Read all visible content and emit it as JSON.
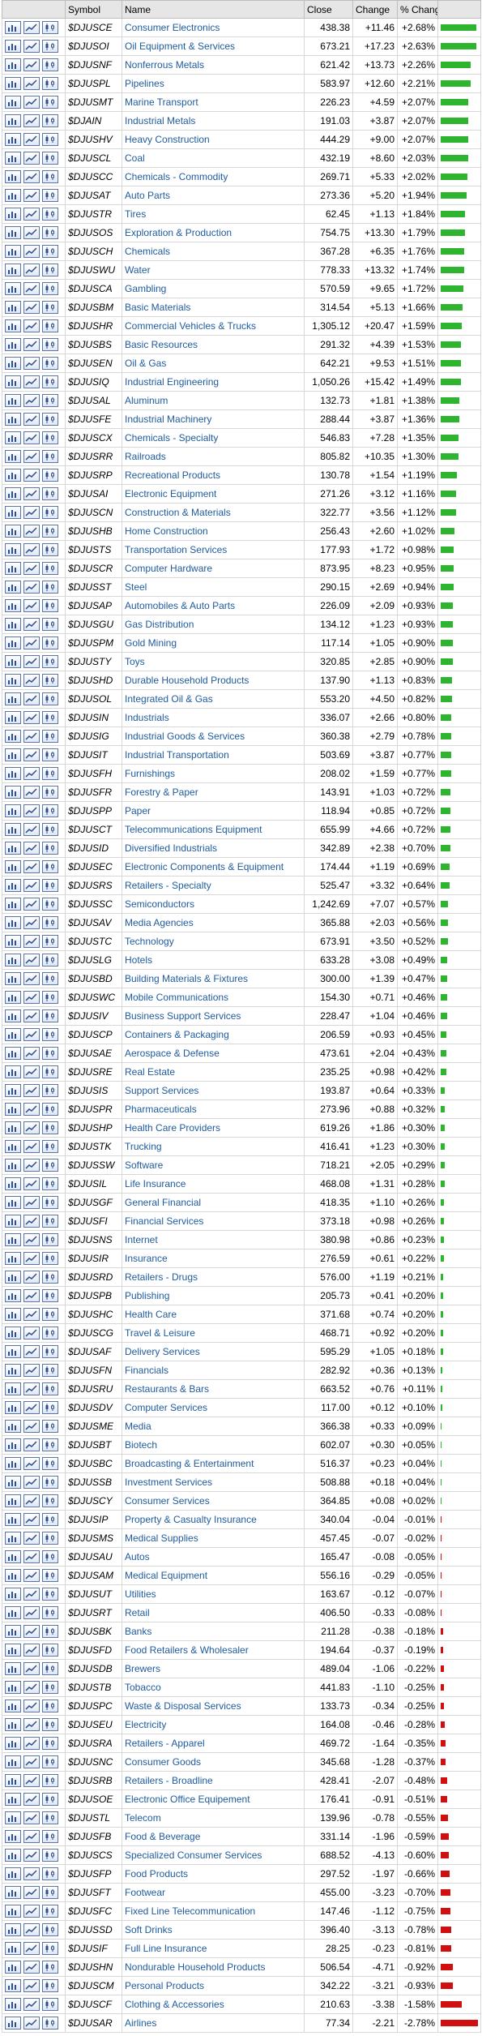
{
  "headers": {
    "icons": "",
    "symbol": "Symbol",
    "name": "Name",
    "close": "Close",
    "change": "Change",
    "pct_change": "% Change",
    "bar": ""
  },
  "colors": {
    "positive_bar": "#2fb42f",
    "negative_bar": "#d01010",
    "link": "#1f5b9e",
    "header_bg": "#e6e6e6"
  },
  "row_icons": [
    "bar-chart-icon",
    "line-chart-icon",
    "candlestick-chart-icon"
  ],
  "rows": [
    {
      "symbol": "$DJUSCE",
      "name": "Consumer Electronics",
      "close": "438.38",
      "change": "+11.46",
      "pct": "+2.68%",
      "pct_value": 2.68
    },
    {
      "symbol": "$DJUSOI",
      "name": "Oil Equipment & Services",
      "close": "673.21",
      "change": "+17.23",
      "pct": "+2.63%",
      "pct_value": 2.63
    },
    {
      "symbol": "$DJUSNF",
      "name": "Nonferrous Metals",
      "close": "621.42",
      "change": "+13.73",
      "pct": "+2.26%",
      "pct_value": 2.26
    },
    {
      "symbol": "$DJUSPL",
      "name": "Pipelines",
      "close": "583.97",
      "change": "+12.60",
      "pct": "+2.21%",
      "pct_value": 2.21
    },
    {
      "symbol": "$DJUSMT",
      "name": "Marine Transport",
      "close": "226.23",
      "change": "+4.59",
      "pct": "+2.07%",
      "pct_value": 2.07
    },
    {
      "symbol": "$DJAIN",
      "name": "Industrial Metals",
      "close": "191.03",
      "change": "+3.87",
      "pct": "+2.07%",
      "pct_value": 2.07
    },
    {
      "symbol": "$DJUSHV",
      "name": "Heavy Construction",
      "close": "444.29",
      "change": "+9.00",
      "pct": "+2.07%",
      "pct_value": 2.07
    },
    {
      "symbol": "$DJUSCL",
      "name": "Coal",
      "close": "432.19",
      "change": "+8.60",
      "pct": "+2.03%",
      "pct_value": 2.03
    },
    {
      "symbol": "$DJUSCC",
      "name": "Chemicals - Commodity",
      "close": "269.71",
      "change": "+5.33",
      "pct": "+2.02%",
      "pct_value": 2.02
    },
    {
      "symbol": "$DJUSAT",
      "name": "Auto Parts",
      "close": "273.36",
      "change": "+5.20",
      "pct": "+1.94%",
      "pct_value": 1.94
    },
    {
      "symbol": "$DJUSTR",
      "name": "Tires",
      "close": "62.45",
      "change": "+1.13",
      "pct": "+1.84%",
      "pct_value": 1.84
    },
    {
      "symbol": "$DJUSOS",
      "name": "Exploration & Production",
      "close": "754.75",
      "change": "+13.30",
      "pct": "+1.79%",
      "pct_value": 1.79
    },
    {
      "symbol": "$DJUSCH",
      "name": "Chemicals",
      "close": "367.28",
      "change": "+6.35",
      "pct": "+1.76%",
      "pct_value": 1.76
    },
    {
      "symbol": "$DJUSWU",
      "name": "Water",
      "close": "778.33",
      "change": "+13.32",
      "pct": "+1.74%",
      "pct_value": 1.74
    },
    {
      "symbol": "$DJUSCA",
      "name": "Gambling",
      "close": "570.59",
      "change": "+9.65",
      "pct": "+1.72%",
      "pct_value": 1.72
    },
    {
      "symbol": "$DJUSBM",
      "name": "Basic Materials",
      "close": "314.54",
      "change": "+5.13",
      "pct": "+1.66%",
      "pct_value": 1.66
    },
    {
      "symbol": "$DJUSHR",
      "name": "Commercial Vehicles & Trucks",
      "close": "1,305.12",
      "change": "+20.47",
      "pct": "+1.59%",
      "pct_value": 1.59
    },
    {
      "symbol": "$DJUSBS",
      "name": "Basic Resources",
      "close": "291.32",
      "change": "+4.39",
      "pct": "+1.53%",
      "pct_value": 1.53
    },
    {
      "symbol": "$DJUSEN",
      "name": "Oil & Gas",
      "close": "642.21",
      "change": "+9.53",
      "pct": "+1.51%",
      "pct_value": 1.51
    },
    {
      "symbol": "$DJUSIQ",
      "name": "Industrial Engineering",
      "close": "1,050.26",
      "change": "+15.42",
      "pct": "+1.49%",
      "pct_value": 1.49
    },
    {
      "symbol": "$DJUSAL",
      "name": "Aluminum",
      "close": "132.73",
      "change": "+1.81",
      "pct": "+1.38%",
      "pct_value": 1.38
    },
    {
      "symbol": "$DJUSFE",
      "name": "Industrial Machinery",
      "close": "288.44",
      "change": "+3.87",
      "pct": "+1.36%",
      "pct_value": 1.36
    },
    {
      "symbol": "$DJUSCX",
      "name": "Chemicals - Specialty",
      "close": "546.83",
      "change": "+7.28",
      "pct": "+1.35%",
      "pct_value": 1.35
    },
    {
      "symbol": "$DJUSRR",
      "name": "Railroads",
      "close": "805.82",
      "change": "+10.35",
      "pct": "+1.30%",
      "pct_value": 1.3
    },
    {
      "symbol": "$DJUSRP",
      "name": "Recreational Products",
      "close": "130.78",
      "change": "+1.54",
      "pct": "+1.19%",
      "pct_value": 1.19
    },
    {
      "symbol": "$DJUSAI",
      "name": "Electronic Equipment",
      "close": "271.26",
      "change": "+3.12",
      "pct": "+1.16%",
      "pct_value": 1.16
    },
    {
      "symbol": "$DJUSCN",
      "name": "Construction & Materials",
      "close": "322.77",
      "change": "+3.56",
      "pct": "+1.12%",
      "pct_value": 1.12
    },
    {
      "symbol": "$DJUSHB",
      "name": "Home Construction",
      "close": "256.43",
      "change": "+2.60",
      "pct": "+1.02%",
      "pct_value": 1.02
    },
    {
      "symbol": "$DJUSTS",
      "name": "Transportation Services",
      "close": "177.93",
      "change": "+1.72",
      "pct": "+0.98%",
      "pct_value": 0.98
    },
    {
      "symbol": "$DJUSCR",
      "name": "Computer Hardware",
      "close": "873.95",
      "change": "+8.23",
      "pct": "+0.95%",
      "pct_value": 0.95
    },
    {
      "symbol": "$DJUSST",
      "name": "Steel",
      "close": "290.15",
      "change": "+2.69",
      "pct": "+0.94%",
      "pct_value": 0.94
    },
    {
      "symbol": "$DJUSAP",
      "name": "Automobiles & Auto Parts",
      "close": "226.09",
      "change": "+2.09",
      "pct": "+0.93%",
      "pct_value": 0.93
    },
    {
      "symbol": "$DJUSGU",
      "name": "Gas Distribution",
      "close": "134.12",
      "change": "+1.23",
      "pct": "+0.93%",
      "pct_value": 0.93
    },
    {
      "symbol": "$DJUSPM",
      "name": "Gold Mining",
      "close": "117.14",
      "change": "+1.05",
      "pct": "+0.90%",
      "pct_value": 0.9
    },
    {
      "symbol": "$DJUSTY",
      "name": "Toys",
      "close": "320.85",
      "change": "+2.85",
      "pct": "+0.90%",
      "pct_value": 0.9
    },
    {
      "symbol": "$DJUSHD",
      "name": "Durable Household Products",
      "close": "137.90",
      "change": "+1.13",
      "pct": "+0.83%",
      "pct_value": 0.83
    },
    {
      "symbol": "$DJUSOL",
      "name": "Integrated Oil & Gas",
      "close": "553.20",
      "change": "+4.50",
      "pct": "+0.82%",
      "pct_value": 0.82
    },
    {
      "symbol": "$DJUSIN",
      "name": "Industrials",
      "close": "336.07",
      "change": "+2.66",
      "pct": "+0.80%",
      "pct_value": 0.8
    },
    {
      "symbol": "$DJUSIG",
      "name": "Industrial Goods & Services",
      "close": "360.38",
      "change": "+2.79",
      "pct": "+0.78%",
      "pct_value": 0.78
    },
    {
      "symbol": "$DJUSIT",
      "name": "Industrial Transportation",
      "close": "503.69",
      "change": "+3.87",
      "pct": "+0.77%",
      "pct_value": 0.77
    },
    {
      "symbol": "$DJUSFH",
      "name": "Furnishings",
      "close": "208.02",
      "change": "+1.59",
      "pct": "+0.77%",
      "pct_value": 0.77
    },
    {
      "symbol": "$DJUSFR",
      "name": "Forestry & Paper",
      "close": "143.91",
      "change": "+1.03",
      "pct": "+0.72%",
      "pct_value": 0.72
    },
    {
      "symbol": "$DJUSPP",
      "name": "Paper",
      "close": "118.94",
      "change": "+0.85",
      "pct": "+0.72%",
      "pct_value": 0.72
    },
    {
      "symbol": "$DJUSCT",
      "name": "Telecommunications Equipment",
      "close": "655.99",
      "change": "+4.66",
      "pct": "+0.72%",
      "pct_value": 0.72
    },
    {
      "symbol": "$DJUSID",
      "name": "Diversified Industrials",
      "close": "342.89",
      "change": "+2.38",
      "pct": "+0.70%",
      "pct_value": 0.7
    },
    {
      "symbol": "$DJUSEC",
      "name": "Electronic Components & Equipment",
      "close": "174.44",
      "change": "+1.19",
      "pct": "+0.69%",
      "pct_value": 0.69
    },
    {
      "symbol": "$DJUSRS",
      "name": "Retailers - Specialty",
      "close": "525.47",
      "change": "+3.32",
      "pct": "+0.64%",
      "pct_value": 0.64
    },
    {
      "symbol": "$DJUSSC",
      "name": "Semiconductors",
      "close": "1,242.69",
      "change": "+7.07",
      "pct": "+0.57%",
      "pct_value": 0.57
    },
    {
      "symbol": "$DJUSAV",
      "name": "Media Agencies",
      "close": "365.88",
      "change": "+2.03",
      "pct": "+0.56%",
      "pct_value": 0.56
    },
    {
      "symbol": "$DJUSTC",
      "name": "Technology",
      "close": "673.91",
      "change": "+3.50",
      "pct": "+0.52%",
      "pct_value": 0.52
    },
    {
      "symbol": "$DJUSLG",
      "name": "Hotels",
      "close": "633.28",
      "change": "+3.08",
      "pct": "+0.49%",
      "pct_value": 0.49
    },
    {
      "symbol": "$DJUSBD",
      "name": "Building Materials & Fixtures",
      "close": "300.00",
      "change": "+1.39",
      "pct": "+0.47%",
      "pct_value": 0.47
    },
    {
      "symbol": "$DJUSWC",
      "name": "Mobile Communications",
      "close": "154.30",
      "change": "+0.71",
      "pct": "+0.46%",
      "pct_value": 0.46
    },
    {
      "symbol": "$DJUSIV",
      "name": "Business Support Services",
      "close": "228.47",
      "change": "+1.04",
      "pct": "+0.46%",
      "pct_value": 0.46
    },
    {
      "symbol": "$DJUSCP",
      "name": "Containers & Packaging",
      "close": "206.59",
      "change": "+0.93",
      "pct": "+0.45%",
      "pct_value": 0.45
    },
    {
      "symbol": "$DJUSAE",
      "name": "Aerospace & Defense",
      "close": "473.61",
      "change": "+2.04",
      "pct": "+0.43%",
      "pct_value": 0.43
    },
    {
      "symbol": "$DJUSRE",
      "name": "Real Estate",
      "close": "235.25",
      "change": "+0.98",
      "pct": "+0.42%",
      "pct_value": 0.42
    },
    {
      "symbol": "$DJUSIS",
      "name": "Support Services",
      "close": "193.87",
      "change": "+0.64",
      "pct": "+0.33%",
      "pct_value": 0.33
    },
    {
      "symbol": "$DJUSPR",
      "name": "Pharmaceuticals",
      "close": "273.96",
      "change": "+0.88",
      "pct": "+0.32%",
      "pct_value": 0.32
    },
    {
      "symbol": "$DJUSHP",
      "name": "Health Care Providers",
      "close": "619.26",
      "change": "+1.86",
      "pct": "+0.30%",
      "pct_value": 0.3
    },
    {
      "symbol": "$DJUSTK",
      "name": "Trucking",
      "close": "416.41",
      "change": "+1.23",
      "pct": "+0.30%",
      "pct_value": 0.3
    },
    {
      "symbol": "$DJUSSW",
      "name": "Software",
      "close": "718.21",
      "change": "+2.05",
      "pct": "+0.29%",
      "pct_value": 0.29
    },
    {
      "symbol": "$DJUSIL",
      "name": "Life Insurance",
      "close": "468.08",
      "change": "+1.31",
      "pct": "+0.28%",
      "pct_value": 0.28
    },
    {
      "symbol": "$DJUSGF",
      "name": "General Financial",
      "close": "418.35",
      "change": "+1.10",
      "pct": "+0.26%",
      "pct_value": 0.26
    },
    {
      "symbol": "$DJUSFI",
      "name": "Financial Services",
      "close": "373.18",
      "change": "+0.98",
      "pct": "+0.26%",
      "pct_value": 0.26
    },
    {
      "symbol": "$DJUSNS",
      "name": "Internet",
      "close": "380.98",
      "change": "+0.86",
      "pct": "+0.23%",
      "pct_value": 0.23
    },
    {
      "symbol": "$DJUSIR",
      "name": "Insurance",
      "close": "276.59",
      "change": "+0.61",
      "pct": "+0.22%",
      "pct_value": 0.22
    },
    {
      "symbol": "$DJUSRD",
      "name": "Retailers - Drugs",
      "close": "576.00",
      "change": "+1.19",
      "pct": "+0.21%",
      "pct_value": 0.21
    },
    {
      "symbol": "$DJUSPB",
      "name": "Publishing",
      "close": "205.73",
      "change": "+0.41",
      "pct": "+0.20%",
      "pct_value": 0.2
    },
    {
      "symbol": "$DJUSHC",
      "name": "Health Care",
      "close": "371.68",
      "change": "+0.74",
      "pct": "+0.20%",
      "pct_value": 0.2
    },
    {
      "symbol": "$DJUSCG",
      "name": "Travel & Leisure",
      "close": "468.71",
      "change": "+0.92",
      "pct": "+0.20%",
      "pct_value": 0.2
    },
    {
      "symbol": "$DJUSAF",
      "name": "Delivery Services",
      "close": "595.29",
      "change": "+1.05",
      "pct": "+0.18%",
      "pct_value": 0.18
    },
    {
      "symbol": "$DJUSFN",
      "name": "Financials",
      "close": "282.92",
      "change": "+0.36",
      "pct": "+0.13%",
      "pct_value": 0.13
    },
    {
      "symbol": "$DJUSRU",
      "name": "Restaurants & Bars",
      "close": "663.52",
      "change": "+0.76",
      "pct": "+0.11%",
      "pct_value": 0.11
    },
    {
      "symbol": "$DJUSDV",
      "name": "Computer Services",
      "close": "117.00",
      "change": "+0.12",
      "pct": "+0.10%",
      "pct_value": 0.1
    },
    {
      "symbol": "$DJUSME",
      "name": "Media",
      "close": "366.38",
      "change": "+0.33",
      "pct": "+0.09%",
      "pct_value": 0.09
    },
    {
      "symbol": "$DJUSBT",
      "name": "Biotech",
      "close": "602.07",
      "change": "+0.30",
      "pct": "+0.05%",
      "pct_value": 0.05
    },
    {
      "symbol": "$DJUSBC",
      "name": "Broadcasting & Entertainment",
      "close": "516.37",
      "change": "+0.23",
      "pct": "+0.04%",
      "pct_value": 0.04
    },
    {
      "symbol": "$DJUSSB",
      "name": "Investment Services",
      "close": "508.88",
      "change": "+0.18",
      "pct": "+0.04%",
      "pct_value": 0.04
    },
    {
      "symbol": "$DJUSCY",
      "name": "Consumer Services",
      "close": "364.85",
      "change": "+0.08",
      "pct": "+0.02%",
      "pct_value": 0.02
    },
    {
      "symbol": "$DJUSIP",
      "name": "Property & Casualty Insurance",
      "close": "340.04",
      "change": "-0.04",
      "pct": "-0.01%",
      "pct_value": -0.01
    },
    {
      "symbol": "$DJUSMS",
      "name": "Medical Supplies",
      "close": "457.45",
      "change": "-0.07",
      "pct": "-0.02%",
      "pct_value": -0.02
    },
    {
      "symbol": "$DJUSAU",
      "name": "Autos",
      "close": "165.47",
      "change": "-0.08",
      "pct": "-0.05%",
      "pct_value": -0.05
    },
    {
      "symbol": "$DJUSAM",
      "name": "Medical Equipment",
      "close": "556.16",
      "change": "-0.29",
      "pct": "-0.05%",
      "pct_value": -0.05
    },
    {
      "symbol": "$DJUSUT",
      "name": "Utilities",
      "close": "163.67",
      "change": "-0.12",
      "pct": "-0.07%",
      "pct_value": -0.07
    },
    {
      "symbol": "$DJUSRT",
      "name": "Retail",
      "close": "406.50",
      "change": "-0.33",
      "pct": "-0.08%",
      "pct_value": -0.08
    },
    {
      "symbol": "$DJUSBK",
      "name": "Banks",
      "close": "211.28",
      "change": "-0.38",
      "pct": "-0.18%",
      "pct_value": -0.18
    },
    {
      "symbol": "$DJUSFD",
      "name": "Food Retailers & Wholesaler",
      "close": "194.64",
      "change": "-0.37",
      "pct": "-0.19%",
      "pct_value": -0.19
    },
    {
      "symbol": "$DJUSDB",
      "name": "Brewers",
      "close": "489.04",
      "change": "-1.06",
      "pct": "-0.22%",
      "pct_value": -0.22
    },
    {
      "symbol": "$DJUSTB",
      "name": "Tobacco",
      "close": "441.83",
      "change": "-1.10",
      "pct": "-0.25%",
      "pct_value": -0.25
    },
    {
      "symbol": "$DJUSPC",
      "name": "Waste & Disposal Services",
      "close": "133.73",
      "change": "-0.34",
      "pct": "-0.25%",
      "pct_value": -0.25
    },
    {
      "symbol": "$DJUSEU",
      "name": "Electricity",
      "close": "164.08",
      "change": "-0.46",
      "pct": "-0.28%",
      "pct_value": -0.28
    },
    {
      "symbol": "$DJUSRA",
      "name": "Retailers - Apparel",
      "close": "469.72",
      "change": "-1.64",
      "pct": "-0.35%",
      "pct_value": -0.35
    },
    {
      "symbol": "$DJUSNC",
      "name": "Consumer Goods",
      "close": "345.68",
      "change": "-1.28",
      "pct": "-0.37%",
      "pct_value": -0.37
    },
    {
      "symbol": "$DJUSRB",
      "name": "Retailers - Broadline",
      "close": "428.41",
      "change": "-2.07",
      "pct": "-0.48%",
      "pct_value": -0.48
    },
    {
      "symbol": "$DJUSOE",
      "name": "Electronic Office Equipement",
      "close": "176.41",
      "change": "-0.91",
      "pct": "-0.51%",
      "pct_value": -0.51
    },
    {
      "symbol": "$DJUSTL",
      "name": "Telecom",
      "close": "139.96",
      "change": "-0.78",
      "pct": "-0.55%",
      "pct_value": -0.55
    },
    {
      "symbol": "$DJUSFB",
      "name": "Food & Beverage",
      "close": "331.14",
      "change": "-1.96",
      "pct": "-0.59%",
      "pct_value": -0.59
    },
    {
      "symbol": "$DJUSCS",
      "name": "Specialized Consumer Services",
      "close": "688.52",
      "change": "-4.13",
      "pct": "-0.60%",
      "pct_value": -0.6
    },
    {
      "symbol": "$DJUSFP",
      "name": "Food Products",
      "close": "297.52",
      "change": "-1.97",
      "pct": "-0.66%",
      "pct_value": -0.66
    },
    {
      "symbol": "$DJUSFT",
      "name": "Footwear",
      "close": "455.00",
      "change": "-3.23",
      "pct": "-0.70%",
      "pct_value": -0.7
    },
    {
      "symbol": "$DJUSFC",
      "name": "Fixed Line Telecommunication",
      "close": "147.46",
      "change": "-1.12",
      "pct": "-0.75%",
      "pct_value": -0.75
    },
    {
      "symbol": "$DJUSSD",
      "name": "Soft Drinks",
      "close": "396.40",
      "change": "-3.13",
      "pct": "-0.78%",
      "pct_value": -0.78
    },
    {
      "symbol": "$DJUSIF",
      "name": "Full Line Insurance",
      "close": "28.25",
      "change": "-0.23",
      "pct": "-0.81%",
      "pct_value": -0.81
    },
    {
      "symbol": "$DJUSHN",
      "name": "Nondurable Household Products",
      "close": "506.54",
      "change": "-4.71",
      "pct": "-0.92%",
      "pct_value": -0.92
    },
    {
      "symbol": "$DJUSCM",
      "name": "Personal Products",
      "close": "342.22",
      "change": "-3.21",
      "pct": "-0.93%",
      "pct_value": -0.93
    },
    {
      "symbol": "$DJUSCF",
      "name": "Clothing & Accessories",
      "close": "210.63",
      "change": "-3.38",
      "pct": "-1.58%",
      "pct_value": -1.58
    },
    {
      "symbol": "$DJUSAR",
      "name": "Airlines",
      "close": "77.34",
      "change": "-2.21",
      "pct": "-2.78%",
      "pct_value": -2.78
    }
  ]
}
